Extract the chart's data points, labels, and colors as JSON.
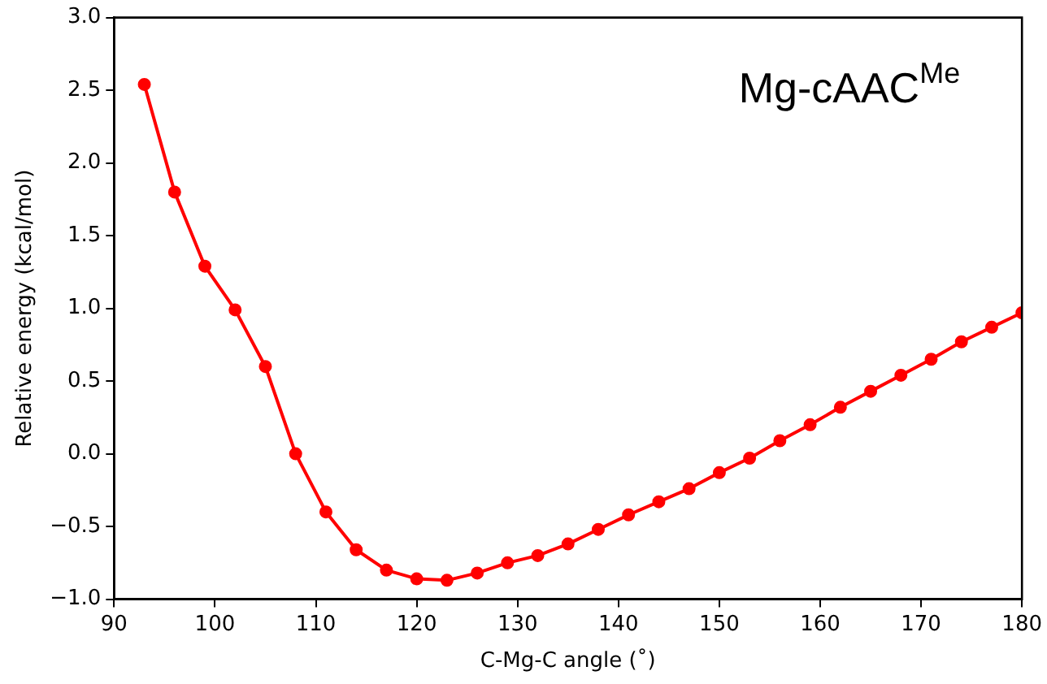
{
  "chart_data": {
    "type": "line",
    "xlabel": "C-Mg-C angle (˚)",
    "ylabel": "Relative energy (kcal/mol)",
    "annotations": [
      "Mg-cAAC$^{Me}$"
    ],
    "x": [
      93,
      96,
      99,
      102,
      105,
      108,
      111,
      114,
      117,
      120,
      123,
      126,
      129,
      132,
      135,
      138,
      141,
      144,
      147,
      150,
      153,
      156,
      159,
      162,
      165,
      168,
      171,
      174,
      177,
      180
    ],
    "series": [
      {
        "color": "#ff0000",
        "values": [
          2.54,
          1.8,
          1.29,
          0.99,
          0.6,
          0.0,
          -0.4,
          -0.66,
          -0.8,
          -0.86,
          -0.87,
          -0.82,
          -0.75,
          -0.7,
          -0.62,
          -0.52,
          -0.42,
          -0.33,
          -0.24,
          -0.13,
          -0.03,
          0.09,
          0.2,
          0.32,
          0.43,
          0.54,
          0.65,
          0.77,
          0.87,
          0.97
        ]
      }
    ],
    "xlim": [
      90,
      180
    ],
    "xticks": [
      90,
      100,
      110,
      120,
      130,
      140,
      150,
      160,
      170,
      180
    ],
    "ylim": [
      -1.0,
      3.0
    ],
    "yticks": [
      {
        "value": -1,
        "label": "−1.0"
      },
      {
        "value": -0.5,
        "label": "−0.5"
      },
      {
        "value": 0,
        "label": "0.0"
      },
      {
        "value": 0.5,
        "label": "0.5"
      },
      {
        "value": 1,
        "label": "1.0"
      },
      {
        "value": 1.5,
        "label": "1.5"
      },
      {
        "value": 2,
        "label": "2.0"
      },
      {
        "value": 2.5,
        "label": "2.5"
      },
      {
        "value": 3,
        "label": "3.0"
      }
    ],
    "grid": false,
    "legend": false,
    "marker": "circle",
    "line_style": "solid"
  }
}
